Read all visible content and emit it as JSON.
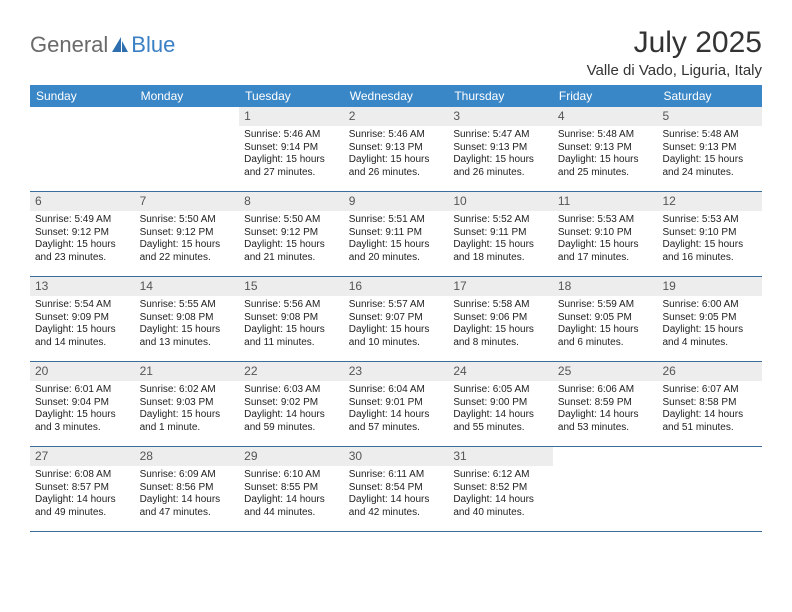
{
  "logo": {
    "part1": "General",
    "part2": "Blue"
  },
  "title": "July 2025",
  "location": "Valle di Vado, Liguria, Italy",
  "colors": {
    "header_bg": "#3a87c7",
    "header_text": "#ffffff",
    "daynum_bg": "#ededed",
    "rule": "#3a6d9a",
    "logo_gray": "#6a6a6a",
    "logo_blue": "#3b7fc4"
  },
  "dow": [
    "Sunday",
    "Monday",
    "Tuesday",
    "Wednesday",
    "Thursday",
    "Friday",
    "Saturday"
  ],
  "weeks": [
    [
      {
        "n": "",
        "sr": "",
        "ss": "",
        "dl": ""
      },
      {
        "n": "",
        "sr": "",
        "ss": "",
        "dl": ""
      },
      {
        "n": "1",
        "sr": "Sunrise: 5:46 AM",
        "ss": "Sunset: 9:14 PM",
        "dl": "Daylight: 15 hours and 27 minutes."
      },
      {
        "n": "2",
        "sr": "Sunrise: 5:46 AM",
        "ss": "Sunset: 9:13 PM",
        "dl": "Daylight: 15 hours and 26 minutes."
      },
      {
        "n": "3",
        "sr": "Sunrise: 5:47 AM",
        "ss": "Sunset: 9:13 PM",
        "dl": "Daylight: 15 hours and 26 minutes."
      },
      {
        "n": "4",
        "sr": "Sunrise: 5:48 AM",
        "ss": "Sunset: 9:13 PM",
        "dl": "Daylight: 15 hours and 25 minutes."
      },
      {
        "n": "5",
        "sr": "Sunrise: 5:48 AM",
        "ss": "Sunset: 9:13 PM",
        "dl": "Daylight: 15 hours and 24 minutes."
      }
    ],
    [
      {
        "n": "6",
        "sr": "Sunrise: 5:49 AM",
        "ss": "Sunset: 9:12 PM",
        "dl": "Daylight: 15 hours and 23 minutes."
      },
      {
        "n": "7",
        "sr": "Sunrise: 5:50 AM",
        "ss": "Sunset: 9:12 PM",
        "dl": "Daylight: 15 hours and 22 minutes."
      },
      {
        "n": "8",
        "sr": "Sunrise: 5:50 AM",
        "ss": "Sunset: 9:12 PM",
        "dl": "Daylight: 15 hours and 21 minutes."
      },
      {
        "n": "9",
        "sr": "Sunrise: 5:51 AM",
        "ss": "Sunset: 9:11 PM",
        "dl": "Daylight: 15 hours and 20 minutes."
      },
      {
        "n": "10",
        "sr": "Sunrise: 5:52 AM",
        "ss": "Sunset: 9:11 PM",
        "dl": "Daylight: 15 hours and 18 minutes."
      },
      {
        "n": "11",
        "sr": "Sunrise: 5:53 AM",
        "ss": "Sunset: 9:10 PM",
        "dl": "Daylight: 15 hours and 17 minutes."
      },
      {
        "n": "12",
        "sr": "Sunrise: 5:53 AM",
        "ss": "Sunset: 9:10 PM",
        "dl": "Daylight: 15 hours and 16 minutes."
      }
    ],
    [
      {
        "n": "13",
        "sr": "Sunrise: 5:54 AM",
        "ss": "Sunset: 9:09 PM",
        "dl": "Daylight: 15 hours and 14 minutes."
      },
      {
        "n": "14",
        "sr": "Sunrise: 5:55 AM",
        "ss": "Sunset: 9:08 PM",
        "dl": "Daylight: 15 hours and 13 minutes."
      },
      {
        "n": "15",
        "sr": "Sunrise: 5:56 AM",
        "ss": "Sunset: 9:08 PM",
        "dl": "Daylight: 15 hours and 11 minutes."
      },
      {
        "n": "16",
        "sr": "Sunrise: 5:57 AM",
        "ss": "Sunset: 9:07 PM",
        "dl": "Daylight: 15 hours and 10 minutes."
      },
      {
        "n": "17",
        "sr": "Sunrise: 5:58 AM",
        "ss": "Sunset: 9:06 PM",
        "dl": "Daylight: 15 hours and 8 minutes."
      },
      {
        "n": "18",
        "sr": "Sunrise: 5:59 AM",
        "ss": "Sunset: 9:05 PM",
        "dl": "Daylight: 15 hours and 6 minutes."
      },
      {
        "n": "19",
        "sr": "Sunrise: 6:00 AM",
        "ss": "Sunset: 9:05 PM",
        "dl": "Daylight: 15 hours and 4 minutes."
      }
    ],
    [
      {
        "n": "20",
        "sr": "Sunrise: 6:01 AM",
        "ss": "Sunset: 9:04 PM",
        "dl": "Daylight: 15 hours and 3 minutes."
      },
      {
        "n": "21",
        "sr": "Sunrise: 6:02 AM",
        "ss": "Sunset: 9:03 PM",
        "dl": "Daylight: 15 hours and 1 minute."
      },
      {
        "n": "22",
        "sr": "Sunrise: 6:03 AM",
        "ss": "Sunset: 9:02 PM",
        "dl": "Daylight: 14 hours and 59 minutes."
      },
      {
        "n": "23",
        "sr": "Sunrise: 6:04 AM",
        "ss": "Sunset: 9:01 PM",
        "dl": "Daylight: 14 hours and 57 minutes."
      },
      {
        "n": "24",
        "sr": "Sunrise: 6:05 AM",
        "ss": "Sunset: 9:00 PM",
        "dl": "Daylight: 14 hours and 55 minutes."
      },
      {
        "n": "25",
        "sr": "Sunrise: 6:06 AM",
        "ss": "Sunset: 8:59 PM",
        "dl": "Daylight: 14 hours and 53 minutes."
      },
      {
        "n": "26",
        "sr": "Sunrise: 6:07 AM",
        "ss": "Sunset: 8:58 PM",
        "dl": "Daylight: 14 hours and 51 minutes."
      }
    ],
    [
      {
        "n": "27",
        "sr": "Sunrise: 6:08 AM",
        "ss": "Sunset: 8:57 PM",
        "dl": "Daylight: 14 hours and 49 minutes."
      },
      {
        "n": "28",
        "sr": "Sunrise: 6:09 AM",
        "ss": "Sunset: 8:56 PM",
        "dl": "Daylight: 14 hours and 47 minutes."
      },
      {
        "n": "29",
        "sr": "Sunrise: 6:10 AM",
        "ss": "Sunset: 8:55 PM",
        "dl": "Daylight: 14 hours and 44 minutes."
      },
      {
        "n": "30",
        "sr": "Sunrise: 6:11 AM",
        "ss": "Sunset: 8:54 PM",
        "dl": "Daylight: 14 hours and 42 minutes."
      },
      {
        "n": "31",
        "sr": "Sunrise: 6:12 AM",
        "ss": "Sunset: 8:52 PM",
        "dl": "Daylight: 14 hours and 40 minutes."
      },
      {
        "n": "",
        "sr": "",
        "ss": "",
        "dl": ""
      },
      {
        "n": "",
        "sr": "",
        "ss": "",
        "dl": ""
      }
    ]
  ]
}
